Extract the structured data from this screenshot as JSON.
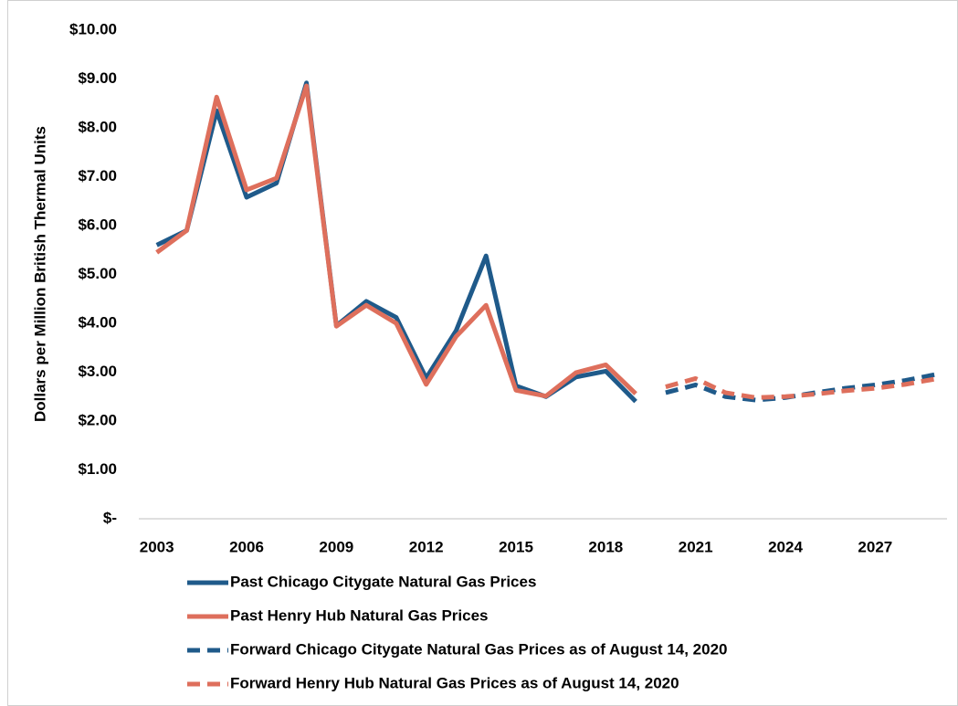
{
  "chart_data": {
    "type": "line",
    "y_label": "Dollars per Million British Thermal Units",
    "x": [
      2003,
      2004,
      2005,
      2006,
      2007,
      2008,
      2009,
      2010,
      2011,
      2012,
      2013,
      2014,
      2015,
      2016,
      2017,
      2018,
      2019,
      2020,
      2021,
      2022,
      2023,
      2024,
      2025,
      2026,
      2027,
      2028,
      2029
    ],
    "xlim": [
      2002.4,
      2029.4
    ],
    "xticks": [
      2003,
      2006,
      2009,
      2012,
      2015,
      2018,
      2021,
      2024,
      2027
    ],
    "ylim": [
      0,
      10
    ],
    "yticks": [
      {
        "value": 0,
        "label": "$-"
      },
      {
        "value": 1,
        "label": "$1.00"
      },
      {
        "value": 2,
        "label": "$2.00"
      },
      {
        "value": 3,
        "label": "$3.00"
      },
      {
        "value": 4,
        "label": "$4.00"
      },
      {
        "value": 5,
        "label": "$5.00"
      },
      {
        "value": 6,
        "label": "$6.00"
      },
      {
        "value": 7,
        "label": "$7.00"
      },
      {
        "value": 8,
        "label": "$8.00"
      },
      {
        "value": 9,
        "label": "$9.00"
      },
      {
        "value": 10,
        "label": "$10.00"
      }
    ],
    "series": [
      {
        "name": "Past Chicago Citygate Natural Gas Prices",
        "color": "#1f5a8a",
        "style": "solid",
        "values": [
          5.6,
          5.9,
          8.35,
          6.58,
          6.87,
          8.92,
          3.95,
          4.45,
          4.12,
          2.88,
          3.85,
          5.38,
          2.72,
          2.5,
          2.9,
          3.02,
          2.4,
          null,
          null,
          null,
          null,
          null,
          null,
          null,
          null,
          null,
          null
        ]
      },
      {
        "name": "Past Henry Hub Natural Gas Prices",
        "color": "#de6f5c",
        "style": "solid",
        "values": [
          5.45,
          5.9,
          8.63,
          6.73,
          6.97,
          8.86,
          3.94,
          4.37,
          4.0,
          2.75,
          3.73,
          4.37,
          2.63,
          2.51,
          2.99,
          3.15,
          2.56,
          null,
          null,
          null,
          null,
          null,
          null,
          null,
          null,
          null,
          null
        ]
      },
      {
        "name": "Forward Chicago Citygate Natural Gas Prices as of August 14, 2020",
        "color": "#1f5a8a",
        "style": "dashed",
        "values": [
          null,
          null,
          null,
          null,
          null,
          null,
          null,
          null,
          null,
          null,
          null,
          null,
          null,
          null,
          null,
          null,
          null,
          2.58,
          2.74,
          2.5,
          2.43,
          2.48,
          2.58,
          2.67,
          2.74,
          2.83,
          2.95
        ]
      },
      {
        "name": "Forward Henry Hub Natural Gas Prices as of August 14, 2020",
        "color": "#de6f5c",
        "style": "dashed",
        "values": [
          null,
          null,
          null,
          null,
          null,
          null,
          null,
          null,
          null,
          null,
          null,
          null,
          null,
          null,
          null,
          null,
          null,
          2.7,
          2.87,
          2.58,
          2.48,
          2.5,
          2.55,
          2.62,
          2.67,
          2.75,
          2.86
        ]
      }
    ]
  }
}
